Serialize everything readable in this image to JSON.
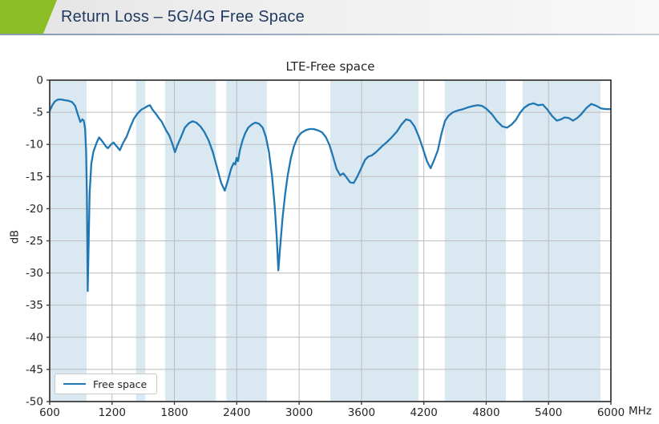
{
  "header": {
    "title": "Return Loss – 5G/4G Free Space",
    "accent_color": "#8bbe25",
    "title_color": "#1e3a5f"
  },
  "chart_data": {
    "type": "line",
    "title": "LTE-Free space",
    "xlabel": "",
    "ylabel": "dB",
    "x_unit": "MHz",
    "xlim": [
      600,
      6000
    ],
    "ylim": [
      -50,
      0
    ],
    "x_ticks": [
      600,
      1200,
      1800,
      2400,
      3000,
      3600,
      4200,
      4800,
      5400,
      6000
    ],
    "y_ticks": [
      0,
      -5,
      -10,
      -15,
      -20,
      -25,
      -30,
      -35,
      -40,
      -45,
      -50
    ],
    "grid": true,
    "legend_position": "lower left",
    "line_color": "#1f77b4",
    "band_color": "#dae8f1",
    "grid_color": "#bcbcbc",
    "spine_color": "#3d3d3d",
    "shaded_bands_mhz": [
      [
        600,
        955
      ],
      [
        1430,
        1520
      ],
      [
        1710,
        2200
      ],
      [
        2300,
        2690
      ],
      [
        3300,
        4150
      ],
      [
        4400,
        4990
      ],
      [
        5150,
        5900
      ]
    ],
    "series": [
      {
        "name": "Free space",
        "points": [
          [
            600,
            -4.8
          ],
          [
            625,
            -3.9
          ],
          [
            650,
            -3.3
          ],
          [
            680,
            -3.0
          ],
          [
            710,
            -3.0
          ],
          [
            740,
            -3.1
          ],
          [
            780,
            -3.2
          ],
          [
            815,
            -3.4
          ],
          [
            845,
            -4.0
          ],
          [
            870,
            -5.3
          ],
          [
            895,
            -6.5
          ],
          [
            915,
            -6.1
          ],
          [
            928,
            -6.3
          ],
          [
            940,
            -7.5
          ],
          [
            950,
            -11.0
          ],
          [
            958,
            -18.0
          ],
          [
            966,
            -32.8
          ],
          [
            974,
            -26.0
          ],
          [
            984,
            -17.5
          ],
          [
            1000,
            -13.0
          ],
          [
            1020,
            -11.2
          ],
          [
            1050,
            -9.8
          ],
          [
            1075,
            -8.9
          ],
          [
            1110,
            -9.6
          ],
          [
            1140,
            -10.3
          ],
          [
            1160,
            -10.6
          ],
          [
            1190,
            -10.0
          ],
          [
            1215,
            -9.7
          ],
          [
            1245,
            -10.3
          ],
          [
            1275,
            -10.9
          ],
          [
            1305,
            -9.8
          ],
          [
            1340,
            -8.8
          ],
          [
            1375,
            -7.3
          ],
          [
            1410,
            -6.0
          ],
          [
            1445,
            -5.2
          ],
          [
            1480,
            -4.6
          ],
          [
            1515,
            -4.3
          ],
          [
            1545,
            -4.0
          ],
          [
            1565,
            -3.9
          ],
          [
            1590,
            -4.6
          ],
          [
            1620,
            -5.2
          ],
          [
            1650,
            -5.9
          ],
          [
            1675,
            -6.4
          ],
          [
            1695,
            -7.0
          ],
          [
            1720,
            -7.8
          ],
          [
            1750,
            -8.6
          ],
          [
            1780,
            -9.9
          ],
          [
            1805,
            -11.2
          ],
          [
            1830,
            -10.1
          ],
          [
            1860,
            -9.0
          ],
          [
            1900,
            -7.4
          ],
          [
            1940,
            -6.7
          ],
          [
            1975,
            -6.4
          ],
          [
            2010,
            -6.6
          ],
          [
            2050,
            -7.2
          ],
          [
            2090,
            -8.1
          ],
          [
            2130,
            -9.4
          ],
          [
            2170,
            -11.2
          ],
          [
            2210,
            -13.6
          ],
          [
            2250,
            -16.0
          ],
          [
            2285,
            -17.2
          ],
          [
            2315,
            -15.6
          ],
          [
            2345,
            -13.8
          ],
          [
            2370,
            -12.9
          ],
          [
            2385,
            -13.1
          ],
          [
            2398,
            -12.1
          ],
          [
            2412,
            -12.6
          ],
          [
            2430,
            -10.9
          ],
          [
            2455,
            -9.4
          ],
          [
            2480,
            -8.3
          ],
          [
            2510,
            -7.4
          ],
          [
            2545,
            -6.9
          ],
          [
            2580,
            -6.6
          ],
          [
            2615,
            -6.8
          ],
          [
            2650,
            -7.4
          ],
          [
            2680,
            -8.8
          ],
          [
            2710,
            -11.2
          ],
          [
            2740,
            -15.0
          ],
          [
            2765,
            -19.5
          ],
          [
            2785,
            -24.5
          ],
          [
            2800,
            -29.6
          ],
          [
            2815,
            -26.5
          ],
          [
            2840,
            -21.5
          ],
          [
            2865,
            -17.8
          ],
          [
            2890,
            -14.8
          ],
          [
            2920,
            -12.2
          ],
          [
            2950,
            -10.3
          ],
          [
            2985,
            -8.9
          ],
          [
            3020,
            -8.2
          ],
          [
            3060,
            -7.8
          ],
          [
            3100,
            -7.6
          ],
          [
            3140,
            -7.6
          ],
          [
            3180,
            -7.8
          ],
          [
            3220,
            -8.1
          ],
          [
            3255,
            -8.8
          ],
          [
            3290,
            -10.0
          ],
          [
            3325,
            -11.8
          ],
          [
            3360,
            -13.8
          ],
          [
            3395,
            -14.8
          ],
          [
            3425,
            -14.5
          ],
          [
            3455,
            -15.1
          ],
          [
            3490,
            -15.9
          ],
          [
            3525,
            -16.0
          ],
          [
            3560,
            -15.0
          ],
          [
            3600,
            -13.6
          ],
          [
            3635,
            -12.4
          ],
          [
            3665,
            -11.9
          ],
          [
            3700,
            -11.7
          ],
          [
            3740,
            -11.2
          ],
          [
            3790,
            -10.4
          ],
          [
            3840,
            -9.7
          ],
          [
            3890,
            -8.9
          ],
          [
            3940,
            -8.0
          ],
          [
            3985,
            -6.9
          ],
          [
            4030,
            -6.1
          ],
          [
            4070,
            -6.3
          ],
          [
            4110,
            -7.2
          ],
          [
            4150,
            -8.7
          ],
          [
            4190,
            -10.6
          ],
          [
            4230,
            -12.6
          ],
          [
            4265,
            -13.7
          ],
          [
            4300,
            -12.4
          ],
          [
            4335,
            -10.9
          ],
          [
            4370,
            -8.3
          ],
          [
            4405,
            -6.3
          ],
          [
            4440,
            -5.5
          ],
          [
            4480,
            -5.0
          ],
          [
            4530,
            -4.7
          ],
          [
            4580,
            -4.5
          ],
          [
            4630,
            -4.2
          ],
          [
            4680,
            -4.0
          ],
          [
            4720,
            -3.9
          ],
          [
            4760,
            -4.0
          ],
          [
            4805,
            -4.5
          ],
          [
            4855,
            -5.3
          ],
          [
            4905,
            -6.4
          ],
          [
            4955,
            -7.2
          ],
          [
            5000,
            -7.4
          ],
          [
            5045,
            -6.9
          ],
          [
            5085,
            -6.2
          ],
          [
            5125,
            -5.1
          ],
          [
            5165,
            -4.3
          ],
          [
            5210,
            -3.8
          ],
          [
            5255,
            -3.6
          ],
          [
            5300,
            -3.9
          ],
          [
            5345,
            -3.8
          ],
          [
            5390,
            -4.6
          ],
          [
            5435,
            -5.6
          ],
          [
            5480,
            -6.3
          ],
          [
            5520,
            -6.1
          ],
          [
            5555,
            -5.8
          ],
          [
            5595,
            -5.9
          ],
          [
            5635,
            -6.3
          ],
          [
            5675,
            -5.9
          ],
          [
            5715,
            -5.3
          ],
          [
            5760,
            -4.4
          ],
          [
            5810,
            -3.7
          ],
          [
            5860,
            -4.0
          ],
          [
            5905,
            -4.4
          ],
          [
            5950,
            -4.5
          ],
          [
            6000,
            -4.5
          ]
        ]
      }
    ]
  }
}
